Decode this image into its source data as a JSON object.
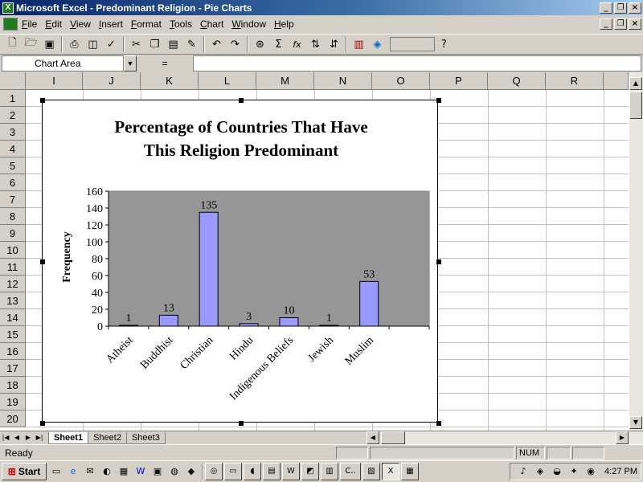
{
  "window": {
    "title": "Microsoft Excel - Predominant Religion - Pie Charts",
    "app_icon": "X",
    "buttons": [
      "_",
      "❐",
      "×"
    ]
  },
  "menu": [
    "File",
    "Edit",
    "View",
    "Insert",
    "Format",
    "Tools",
    "Chart",
    "Window",
    "Help"
  ],
  "toolbar": {
    "icons": [
      "new-icon",
      "open-icon",
      "save-icon",
      "print-icon",
      "print-preview-icon",
      "spelling-icon",
      "cut-icon",
      "copy-icon",
      "paste-icon",
      "format-painter-icon",
      "undo-icon",
      "redo-icon",
      "hyperlink-icon",
      "autosum-icon",
      "function-icon",
      "sort-ascending-icon",
      "sort-descending-icon",
      "chart-wizard-icon",
      "map-icon",
      "help-icon"
    ],
    "autosum": "Σ",
    "fx": "fx"
  },
  "formula_bar": {
    "name_box": "Chart Area",
    "equals": "=",
    "value": ""
  },
  "grid": {
    "columns": [
      "I",
      "J",
      "K",
      "L",
      "M",
      "N",
      "O",
      "P",
      "Q",
      "R"
    ],
    "rows": [
      "1",
      "2",
      "3",
      "4",
      "5",
      "6",
      "7",
      "8",
      "9",
      "10",
      "11",
      "12",
      "13",
      "14",
      "15",
      "16",
      "17",
      "18",
      "19",
      "20"
    ]
  },
  "chart_data": {
    "type": "bar",
    "title": "Percentage of Countries That Have This Religion Predominant",
    "title_lines": [
      "Percentage of Countries That Have",
      "This Religion Predominant"
    ],
    "xlabel": "",
    "ylabel": "Frequency",
    "categories": [
      "Atheist",
      "Buddhist",
      "Christian",
      "Hindu",
      "Indigenous Beliefs",
      "Jewish",
      "Muslim"
    ],
    "values": [
      1,
      13,
      135,
      3,
      10,
      1,
      53
    ],
    "data_labels": [
      "1",
      "13",
      "135",
      "3",
      "10",
      "1",
      "53"
    ],
    "ylim": [
      0,
      160
    ],
    "yticks": [
      "0",
      "20",
      "40",
      "60",
      "80",
      "100",
      "120",
      "140",
      "160"
    ],
    "grid": false,
    "legend": "none",
    "plot_color": "#969696",
    "bar_color": "#9999ff"
  },
  "sheets": [
    "Sheet1",
    "Sheet2",
    "Sheet3"
  ],
  "status": {
    "ready": "Ready",
    "num": "NUM"
  },
  "taskbar": {
    "start": "Start",
    "task_label": "C..",
    "clock": "4:27 PM"
  }
}
